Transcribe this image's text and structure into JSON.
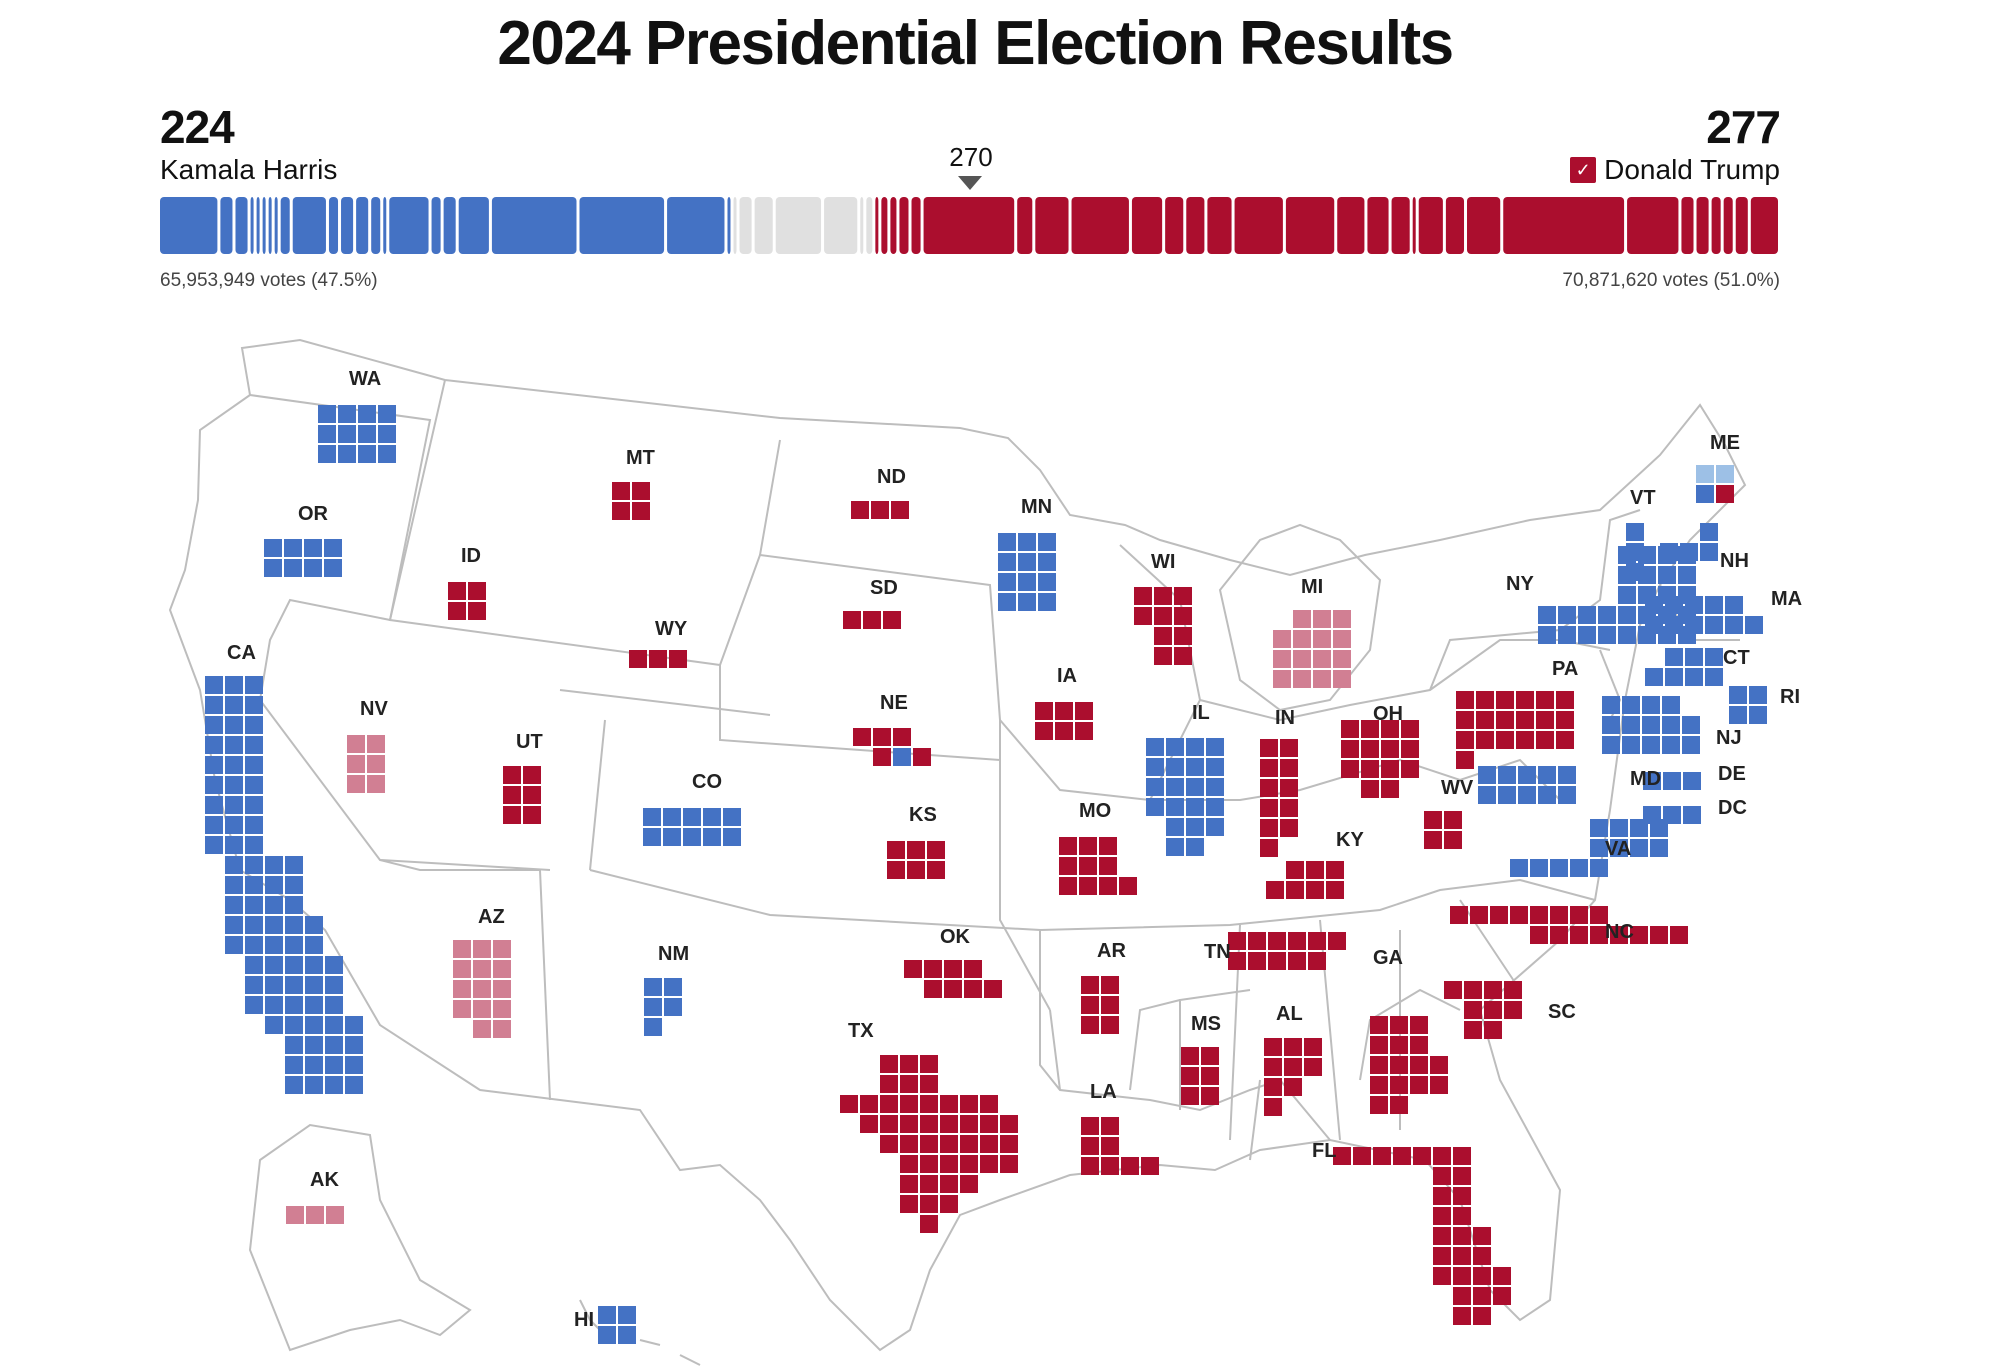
{
  "title": "2024 Presidential Election Results",
  "harris": {
    "total": "224",
    "name": "Kamala Harris",
    "votes": "65,953,949 votes (47.5%)"
  },
  "trump": {
    "total": "277",
    "name": "Donald Trump",
    "votes": "70,871,620 votes (51.0%)",
    "winner_check": "✓"
  },
  "threshold": "270",
  "colors": {
    "dem": "#4472c4",
    "dem_lean": "#9dc0e6",
    "rep": "#ab0e2e",
    "rep_lean": "#d17f93",
    "undecided": "#e0e0e0",
    "outline": "#bdbdbd"
  },
  "bar_segments": [
    {
      "ev": 19,
      "c": "dem"
    },
    {
      "ev": 4,
      "c": "dem"
    },
    {
      "ev": 4,
      "c": "dem"
    },
    {
      "ev": 1,
      "c": "dem"
    },
    {
      "ev": 1,
      "c": "dem"
    },
    {
      "ev": 1,
      "c": "dem"
    },
    {
      "ev": 1,
      "c": "dem"
    },
    {
      "ev": 1,
      "c": "dem"
    },
    {
      "ev": 3,
      "c": "dem"
    },
    {
      "ev": 11,
      "c": "dem"
    },
    {
      "ev": 3,
      "c": "dem"
    },
    {
      "ev": 4,
      "c": "dem"
    },
    {
      "ev": 4,
      "c": "dem"
    },
    {
      "ev": 3,
      "c": "dem"
    },
    {
      "ev": 1,
      "c": "dem"
    },
    {
      "ev": 13,
      "c": "dem"
    },
    {
      "ev": 3,
      "c": "dem"
    },
    {
      "ev": 4,
      "c": "dem"
    },
    {
      "ev": 10,
      "c": "dem"
    },
    {
      "ev": 28,
      "c": "dem"
    },
    {
      "ev": 28,
      "c": "dem"
    },
    {
      "ev": 19,
      "c": "dem"
    },
    {
      "ev": 1,
      "c": "dem"
    },
    {
      "ev": 1,
      "c": "undecided"
    },
    {
      "ev": 4,
      "c": "undecided"
    },
    {
      "ev": 6,
      "c": "undecided"
    },
    {
      "ev": 15,
      "c": "undecided"
    },
    {
      "ev": 11,
      "c": "undecided"
    },
    {
      "ev": 1,
      "c": "undecided"
    },
    {
      "ev": 2,
      "c": "undecided"
    },
    {
      "ev": 1,
      "c": "rep"
    },
    {
      "ev": 2,
      "c": "rep"
    },
    {
      "ev": 2,
      "c": "rep"
    },
    {
      "ev": 3,
      "c": "rep"
    },
    {
      "ev": 3,
      "c": "rep"
    },
    {
      "ev": 30,
      "c": "rep"
    },
    {
      "ev": 5,
      "c": "rep"
    },
    {
      "ev": 11,
      "c": "rep"
    },
    {
      "ev": 19,
      "c": "rep"
    },
    {
      "ev": 10,
      "c": "rep"
    },
    {
      "ev": 6,
      "c": "rep"
    },
    {
      "ev": 6,
      "c": "rep"
    },
    {
      "ev": 8,
      "c": "rep"
    },
    {
      "ev": 16,
      "c": "rep"
    },
    {
      "ev": 16,
      "c": "rep"
    },
    {
      "ev": 9,
      "c": "rep"
    },
    {
      "ev": 7,
      "c": "rep"
    },
    {
      "ev": 6,
      "c": "rep"
    },
    {
      "ev": 1,
      "c": "rep"
    },
    {
      "ev": 8,
      "c": "rep"
    },
    {
      "ev": 6,
      "c": "rep"
    },
    {
      "ev": 11,
      "c": "rep"
    },
    {
      "ev": 40,
      "c": "rep"
    },
    {
      "ev": 17,
      "c": "rep"
    },
    {
      "ev": 4,
      "c": "rep"
    },
    {
      "ev": 4,
      "c": "rep"
    },
    {
      "ev": 3,
      "c": "rep"
    },
    {
      "ev": 3,
      "c": "rep"
    },
    {
      "ev": 4,
      "c": "rep"
    },
    {
      "ev": 9,
      "c": "rep"
    }
  ],
  "states": [
    {
      "abbr": "WA",
      "c": "dem",
      "rows": [
        4,
        4,
        4
      ]
    },
    {
      "abbr": "OR",
      "c": "dem",
      "rows": [
        4,
        4
      ]
    },
    {
      "abbr": "CA",
      "c": "dem",
      "rows": [
        3,
        3,
        3,
        3,
        3,
        3,
        3,
        3,
        3,
        4,
        4,
        4,
        5,
        5,
        5,
        5,
        5,
        5,
        4,
        4,
        4
      ]
    },
    {
      "abbr": "NV",
      "c": "rep_lean",
      "rows": [
        2,
        2,
        2
      ]
    },
    {
      "abbr": "ID",
      "c": "rep",
      "rows": [
        2,
        2
      ]
    },
    {
      "abbr": "MT",
      "c": "rep",
      "rows": [
        2,
        2
      ]
    },
    {
      "abbr": "WY",
      "c": "rep",
      "rows": [
        3
      ]
    },
    {
      "abbr": "UT",
      "c": "rep",
      "rows": [
        2,
        2,
        2
      ]
    },
    {
      "abbr": "AZ",
      "c": "rep_lean",
      "rows": [
        3,
        3,
        3,
        3,
        2
      ]
    },
    {
      "abbr": "CO",
      "c": "dem",
      "rows": [
        5,
        5
      ]
    },
    {
      "abbr": "NM",
      "c": "dem",
      "rows": [
        2,
        2,
        1
      ]
    },
    {
      "abbr": "ND",
      "c": "rep",
      "rows": [
        3
      ]
    },
    {
      "abbr": "SD",
      "c": "rep",
      "rows": [
        3
      ]
    },
    {
      "abbr": "NE",
      "c": "rep",
      "rows": [
        3,
        3
      ],
      "special": {
        "r": 1,
        "i": 1,
        "c": "dem"
      }
    },
    {
      "abbr": "KS",
      "c": "rep",
      "rows": [
        3,
        3
      ]
    },
    {
      "abbr": "OK",
      "c": "rep",
      "rows": [
        4,
        4
      ]
    },
    {
      "abbr": "TX",
      "c": "rep",
      "rows": [
        3,
        3,
        8,
        8,
        7,
        6,
        4,
        3,
        1
      ]
    },
    {
      "abbr": "MN",
      "c": "dem",
      "rows": [
        3,
        3,
        3,
        3
      ]
    },
    {
      "abbr": "IA",
      "c": "rep",
      "rows": [
        3,
        3
      ]
    },
    {
      "abbr": "MO",
      "c": "rep",
      "rows": [
        3,
        3,
        4
      ]
    },
    {
      "abbr": "AR",
      "c": "rep",
      "rows": [
        2,
        2,
        2
      ]
    },
    {
      "abbr": "LA",
      "c": "rep",
      "rows": [
        2,
        2,
        4
      ]
    },
    {
      "abbr": "WI",
      "c": "rep",
      "rows": [
        3,
        3,
        2,
        2
      ]
    },
    {
      "abbr": "IL",
      "c": "dem",
      "rows": [
        4,
        4,
        4,
        4,
        3,
        2
      ]
    },
    {
      "abbr": "MI",
      "c": "rep_lean",
      "rows": [
        3,
        4,
        4,
        4
      ]
    },
    {
      "abbr": "IN",
      "c": "rep",
      "rows": [
        2,
        2,
        2,
        2,
        2,
        1
      ]
    },
    {
      "abbr": "OH",
      "c": "rep",
      "rows": [
        4,
        4,
        4,
        2
      ]
    },
    {
      "abbr": "KY",
      "c": "rep",
      "rows": [
        3,
        4
      ]
    },
    {
      "abbr": "TN",
      "c": "rep",
      "rows": [
        6,
        5
      ]
    },
    {
      "abbr": "MS",
      "c": "rep",
      "rows": [
        2,
        2,
        2
      ]
    },
    {
      "abbr": "AL",
      "c": "rep",
      "rows": [
        3,
        3,
        2,
        1
      ]
    },
    {
      "abbr": "GA",
      "c": "rep",
      "rows": [
        3,
        3,
        4,
        4,
        2
      ]
    },
    {
      "abbr": "FL",
      "c": "rep",
      "rows": [
        7,
        2,
        2,
        2,
        3,
        3,
        4,
        3,
        2
      ]
    },
    {
      "abbr": "SC",
      "c": "rep",
      "rows": [
        4,
        3,
        2
      ]
    },
    {
      "abbr": "NC",
      "c": "rep",
      "rows": [
        8,
        8
      ]
    },
    {
      "abbr": "VA",
      "c": "dem",
      "rows": [
        4,
        4,
        5
      ]
    },
    {
      "abbr": "WV",
      "c": "rep",
      "rows": [
        2,
        2
      ]
    },
    {
      "abbr": "PA",
      "c": "rep",
      "rows": [
        6,
        6,
        6,
        1
      ]
    },
    {
      "abbr": "NY",
      "c": "dem",
      "rows": [
        4,
        4,
        4,
        8,
        8
      ]
    },
    {
      "abbr": "VT",
      "c": "dem",
      "rows": [
        1,
        1,
        1
      ]
    },
    {
      "abbr": "NH",
      "c": "dem",
      "rows": [
        1,
        3
      ]
    },
    {
      "abbr": "ME",
      "c": "dem",
      "rows": [
        2,
        2
      ],
      "special": [
        {
          "r": 0,
          "i": 0,
          "c": "dem_lean"
        },
        {
          "r": 0,
          "i": 1,
          "c": "dem_lean"
        },
        {
          "r": 1,
          "i": 1,
          "c": "rep"
        }
      ]
    },
    {
      "abbr": "MA",
      "c": "dem",
      "rows": [
        5,
        6
      ]
    },
    {
      "abbr": "CT",
      "c": "dem",
      "rows": [
        3,
        4
      ]
    },
    {
      "abbr": "RI",
      "c": "dem",
      "rows": [
        2,
        2
      ]
    },
    {
      "abbr": "NJ",
      "c": "dem",
      "rows": [
        4,
        5,
        5
      ]
    },
    {
      "abbr": "MD",
      "c": "dem",
      "rows": [
        5,
        5
      ]
    },
    {
      "abbr": "DE",
      "c": "dem",
      "rows": [
        3
      ]
    },
    {
      "abbr": "DC",
      "c": "dem",
      "rows": [
        3
      ]
    },
    {
      "abbr": "AK",
      "c": "rep_lean",
      "rows": [
        3
      ]
    },
    {
      "abbr": "HI",
      "c": "dem",
      "rows": [
        2,
        2
      ]
    }
  ]
}
